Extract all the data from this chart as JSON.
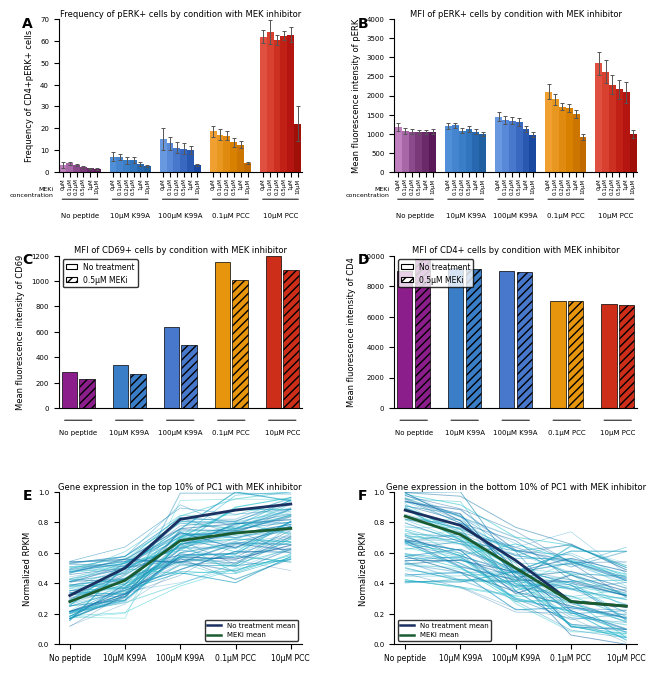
{
  "panel_A": {
    "title": "Frequency of pERK+ cells by condition with MEK inhibitor",
    "ylabel": "Frequency of CD4+pERK+ cells",
    "groups": [
      "No peptide",
      "10μM K99A",
      "100μM K99A",
      "0.1μM PCC",
      "10μM PCC"
    ],
    "meki_labels": [
      "0μM",
      "0.1μM",
      "0.2μM",
      "0.5μM",
      "1μM",
      "10μM"
    ],
    "values": [
      [
        3.2,
        3.8,
        3.0,
        2.2,
        1.5,
        1.2
      ],
      [
        7.0,
        6.8,
        5.2,
        5.5,
        3.5,
        2.5
      ],
      [
        15.0,
        13.0,
        11.0,
        10.5,
        10.0,
        3.0
      ],
      [
        18.5,
        17.0,
        16.5,
        13.5,
        12.5,
        4.0
      ],
      [
        62.0,
        64.0,
        60.5,
        62.5,
        63.0,
        22.0
      ]
    ],
    "errors": [
      [
        1.5,
        0.8,
        0.5,
        0.5,
        0.3,
        0.3
      ],
      [
        2.0,
        1.5,
        1.5,
        1.5,
        1.0,
        0.5
      ],
      [
        5.0,
        3.0,
        2.5,
        2.5,
        2.0,
        0.5
      ],
      [
        2.5,
        2.5,
        2.0,
        2.0,
        1.5,
        0.5
      ],
      [
        3.0,
        5.5,
        2.5,
        2.0,
        3.5,
        8.0
      ]
    ],
    "color_variants": [
      [
        "#C080C0",
        "#A868A8",
        "#8B4A8B",
        "#7A3A7A",
        "#6A2A6A",
        "#5A1A5A"
      ],
      [
        "#5090D8",
        "#4585D0",
        "#3B7EC8",
        "#3075BE",
        "#2868B0",
        "#2060A0"
      ],
      [
        "#6898E0",
        "#5888D8",
        "#4878CC",
        "#3868C0",
        "#2858B0",
        "#1848A0"
      ],
      [
        "#F0A030",
        "#E89820",
        "#E08B10",
        "#D88000",
        "#CC7500",
        "#C06A00"
      ],
      [
        "#E05040",
        "#D84030",
        "#CC3020",
        "#C02015",
        "#B41510",
        "#A01008"
      ]
    ],
    "ylim": [
      0,
      70
    ],
    "yticks": [
      0,
      10,
      20,
      30,
      40,
      50,
      60,
      70
    ]
  },
  "panel_B": {
    "title": "MFI of pERK+ cells by condition with MEK inhibitor",
    "ylabel": "Mean fluorescence intensity of pERK",
    "groups": [
      "No peptide",
      "10μM K99A",
      "100μM K99A",
      "0.1μM PCC",
      "10μM PCC"
    ],
    "meki_labels": [
      "0μM",
      "0.1μM",
      "0.2μM",
      "0.5μM",
      "1μM",
      "10μM"
    ],
    "values": [
      [
        1170,
        1075,
        1050,
        1040,
        1040,
        1050
      ],
      [
        1200,
        1220,
        1080,
        1120,
        1050,
        1000
      ],
      [
        1440,
        1350,
        1340,
        1310,
        1120,
        970
      ],
      [
        2100,
        1900,
        1710,
        1680,
        1520,
        900
      ],
      [
        2850,
        2620,
        2280,
        2160,
        2080,
        990
      ]
    ],
    "errors": [
      [
        100,
        80,
        60,
        60,
        50,
        60
      ],
      [
        70,
        60,
        70,
        80,
        70,
        50
      ],
      [
        120,
        100,
        100,
        100,
        90,
        60
      ],
      [
        200,
        150,
        100,
        100,
        100,
        80
      ],
      [
        300,
        300,
        250,
        250,
        280,
        100
      ]
    ],
    "color_variants": [
      [
        "#C080C0",
        "#A868A8",
        "#8B4A8B",
        "#7A3A7A",
        "#6A2A6A",
        "#5A1A5A"
      ],
      [
        "#5090D8",
        "#4585D0",
        "#3B7EC8",
        "#3075BE",
        "#2868B0",
        "#2060A0"
      ],
      [
        "#6898E0",
        "#5888D8",
        "#4878CC",
        "#3868C0",
        "#2858B0",
        "#1848A0"
      ],
      [
        "#F0A030",
        "#E89820",
        "#E08B10",
        "#D88000",
        "#CC7500",
        "#C06A00"
      ],
      [
        "#E05040",
        "#D84030",
        "#CC3020",
        "#C02015",
        "#B41510",
        "#A01008"
      ]
    ],
    "ylim": [
      0,
      4000
    ],
    "yticks": [
      0,
      500,
      1000,
      1500,
      2000,
      2500,
      3000,
      3500,
      4000
    ]
  },
  "panel_C": {
    "title": "MFI of CD69+ cells by condition with MEK inhibitor",
    "ylabel": "Mean fluorescence intensity of CD69",
    "groups": [
      "No peptide",
      "10μM K99A",
      "100μM K99A",
      "0.1μM PCC",
      "10μM PCC"
    ],
    "no_treat_values": [
      280,
      340,
      635,
      1150,
      1200
    ],
    "meki_values": [
      230,
      265,
      500,
      1010,
      1090
    ],
    "colors": [
      "#8B1E8B",
      "#3B7EC8",
      "#4878CC",
      "#E8950E",
      "#CC2E1A"
    ],
    "ylim": [
      0,
      1200
    ],
    "yticks": [
      0,
      200,
      400,
      600,
      800,
      1000,
      1200
    ]
  },
  "panel_D": {
    "title": "MFI of CD4+ cells by condition with MEK inhibitor",
    "ylabel": "Mean fluorescence intensity of CD4",
    "groups": [
      "No peptide",
      "10μM K99A",
      "100μM K99A",
      "0.1μM PCC",
      "10μM PCC"
    ],
    "no_treat_values": [
      9000,
      9200,
      9000,
      7000,
      6800
    ],
    "meki_values": [
      9800,
      9100,
      8900,
      7000,
      6750
    ],
    "colors": [
      "#8B1E8B",
      "#3B7EC8",
      "#4878CC",
      "#E8950E",
      "#CC2E1A"
    ],
    "ylim": [
      0,
      10000
    ],
    "yticks": [
      0,
      2000,
      4000,
      6000,
      8000,
      10000
    ]
  },
  "panel_E": {
    "title": "Gene expression in the top 10% of PC1 with MEK inhibitor",
    "ylabel": "Normalized RPKM",
    "xlabel_ticks": [
      "No peptide",
      "10μM K99A",
      "100μM K99A",
      "0.1μM PCC",
      "10μM PCC"
    ],
    "ylim": [
      0.0,
      1.0
    ],
    "yticks": [
      0.0,
      0.2,
      0.4,
      0.6,
      0.8,
      1.0
    ],
    "n_lines": 80,
    "legend_loc": "lower right",
    "mean_notrt": [
      0.32,
      0.5,
      0.82,
      0.88,
      0.92
    ],
    "mean_meki": [
      0.28,
      0.42,
      0.68,
      0.73,
      0.76
    ]
  },
  "panel_F": {
    "title": "Gene expression in the bottom 10% of PC1 with MEK inhibitor",
    "ylabel": "Normalized RPKM",
    "xlabel_ticks": [
      "No peptide",
      "10μM K99A",
      "100μM K99A",
      "0.1μM PCC",
      "10μM PCC"
    ],
    "ylim": [
      0.0,
      1.0
    ],
    "yticks": [
      0.0,
      0.2,
      0.4,
      0.6,
      0.8,
      1.0
    ],
    "n_lines": 80,
    "legend_loc": "lower left",
    "mean_notrt": [
      0.88,
      0.78,
      0.55,
      0.28,
      0.25
    ],
    "mean_meki": [
      0.84,
      0.72,
      0.5,
      0.28,
      0.25
    ]
  },
  "meki_conc_labels": [
    "0μM",
    "0.1μM",
    "0.2μM",
    "0.5μM",
    "1μM",
    "10μM"
  ]
}
